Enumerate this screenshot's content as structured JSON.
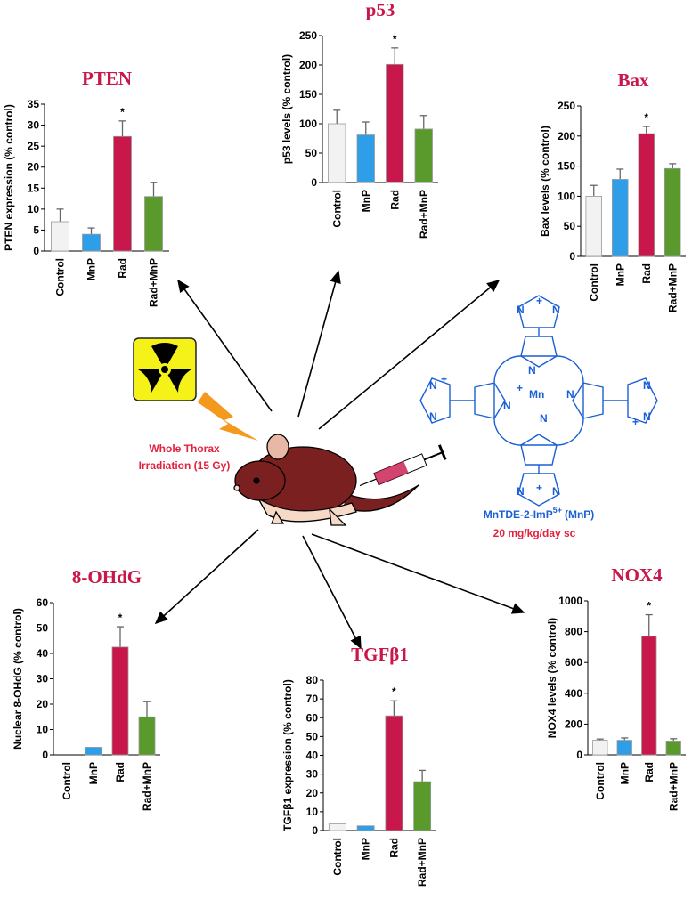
{
  "chart_data": [
    {
      "type": "bar",
      "title": "PTEN",
      "y_label": "PTEN expression (% control)",
      "categories": [
        "Control",
        "MnP",
        "Rad",
        "Rad+MnP"
      ],
      "values": [
        7,
        4,
        27.3,
        13
      ],
      "errors": [
        3,
        1.5,
        3.7,
        3.3
      ],
      "colors": [
        "#f2f2f2",
        "#2e9ee8",
        "#c8174a",
        "#5a9a2c"
      ],
      "significance": [
        null,
        null,
        "*",
        null
      ],
      "ylim": [
        0,
        35
      ],
      "yticks": [
        0,
        5,
        10,
        15,
        20,
        25,
        30,
        35
      ]
    },
    {
      "type": "bar",
      "title": "p53",
      "y_label": "p53 levels (% control)",
      "categories": [
        "Control",
        "MnP",
        "Rad",
        "Rad+MnP"
      ],
      "values": [
        100,
        81,
        201,
        91
      ],
      "errors": [
        23,
        22,
        28,
        23
      ],
      "colors": [
        "#f2f2f2",
        "#2e9ee8",
        "#c8174a",
        "#5a9a2c"
      ],
      "significance": [
        null,
        null,
        "*",
        null
      ],
      "ylim": [
        0,
        250
      ],
      "yticks": [
        0,
        50,
        100,
        150,
        200,
        250
      ]
    },
    {
      "type": "bar",
      "title": "Bax",
      "y_label": "Bax levels (% control)",
      "categories": [
        "Control",
        "MnP",
        "Rad",
        "Rad+MnP"
      ],
      "values": [
        100,
        128,
        204,
        146
      ],
      "errors": [
        18,
        17,
        12,
        8
      ],
      "colors": [
        "#f2f2f2",
        "#2e9ee8",
        "#c8174a",
        "#5a9a2c"
      ],
      "significance": [
        null,
        null,
        "*",
        null
      ],
      "ylim": [
        0,
        250
      ],
      "yticks": [
        0,
        50,
        100,
        150,
        200,
        250
      ]
    },
    {
      "type": "bar",
      "title": "8-OHdG",
      "y_label": "Nuclear 8-OHdG (% control)",
      "categories": [
        "Control",
        "MnP",
        "Rad",
        "Rad+MnP"
      ],
      "values": [
        0,
        3,
        42.5,
        15
      ],
      "errors": [
        0,
        0,
        8,
        6
      ],
      "colors": [
        "#f2f2f2",
        "#2e9ee8",
        "#c8174a",
        "#5a9a2c"
      ],
      "significance": [
        null,
        null,
        "*",
        null
      ],
      "ylim": [
        0,
        60
      ],
      "yticks": [
        0,
        10,
        20,
        30,
        40,
        50,
        60
      ]
    },
    {
      "type": "bar",
      "title": "TGFβ1",
      "y_label": "TGFβ1 expression (% control)",
      "categories": [
        "Control",
        "MnP",
        "Rad",
        "Rad+MnP"
      ],
      "values": [
        3.5,
        2.5,
        61,
        26
      ],
      "errors": [
        0,
        0,
        8,
        6
      ],
      "colors": [
        "#f2f2f2",
        "#2e9ee8",
        "#c8174a",
        "#5a9a2c"
      ],
      "significance": [
        null,
        null,
        "*",
        null
      ],
      "ylim": [
        0,
        80
      ],
      "yticks": [
        0,
        10,
        20,
        30,
        40,
        50,
        60,
        70,
        80
      ]
    },
    {
      "type": "bar",
      "title": "NOX4",
      "y_label": "NOX4 levels (% control)",
      "categories": [
        "Control",
        "MnP",
        "Rad",
        "Rad+MnP"
      ],
      "values": [
        95,
        95,
        770,
        90
      ],
      "errors": [
        8,
        15,
        140,
        15
      ],
      "colors": [
        "#f2f2f2",
        "#2e9ee8",
        "#c8174a",
        "#5a9a2c"
      ],
      "significance": [
        null,
        null,
        "*",
        null
      ],
      "ylim": [
        0,
        1000
      ],
      "yticks": [
        0,
        200,
        400,
        600,
        800,
        1000
      ]
    }
  ],
  "diagram": {
    "irradiation": [
      "Whole Thorax",
      "Irradiation (15 Gy)"
    ],
    "drug_name": "MnTDE-2-ImP",
    "drug_charge": "5+",
    "drug_abbrev": "(MnP)",
    "dose": "20 mg/kg/day sc",
    "atom_n": "N",
    "atom_mn": "Mn",
    "charge": "+"
  }
}
